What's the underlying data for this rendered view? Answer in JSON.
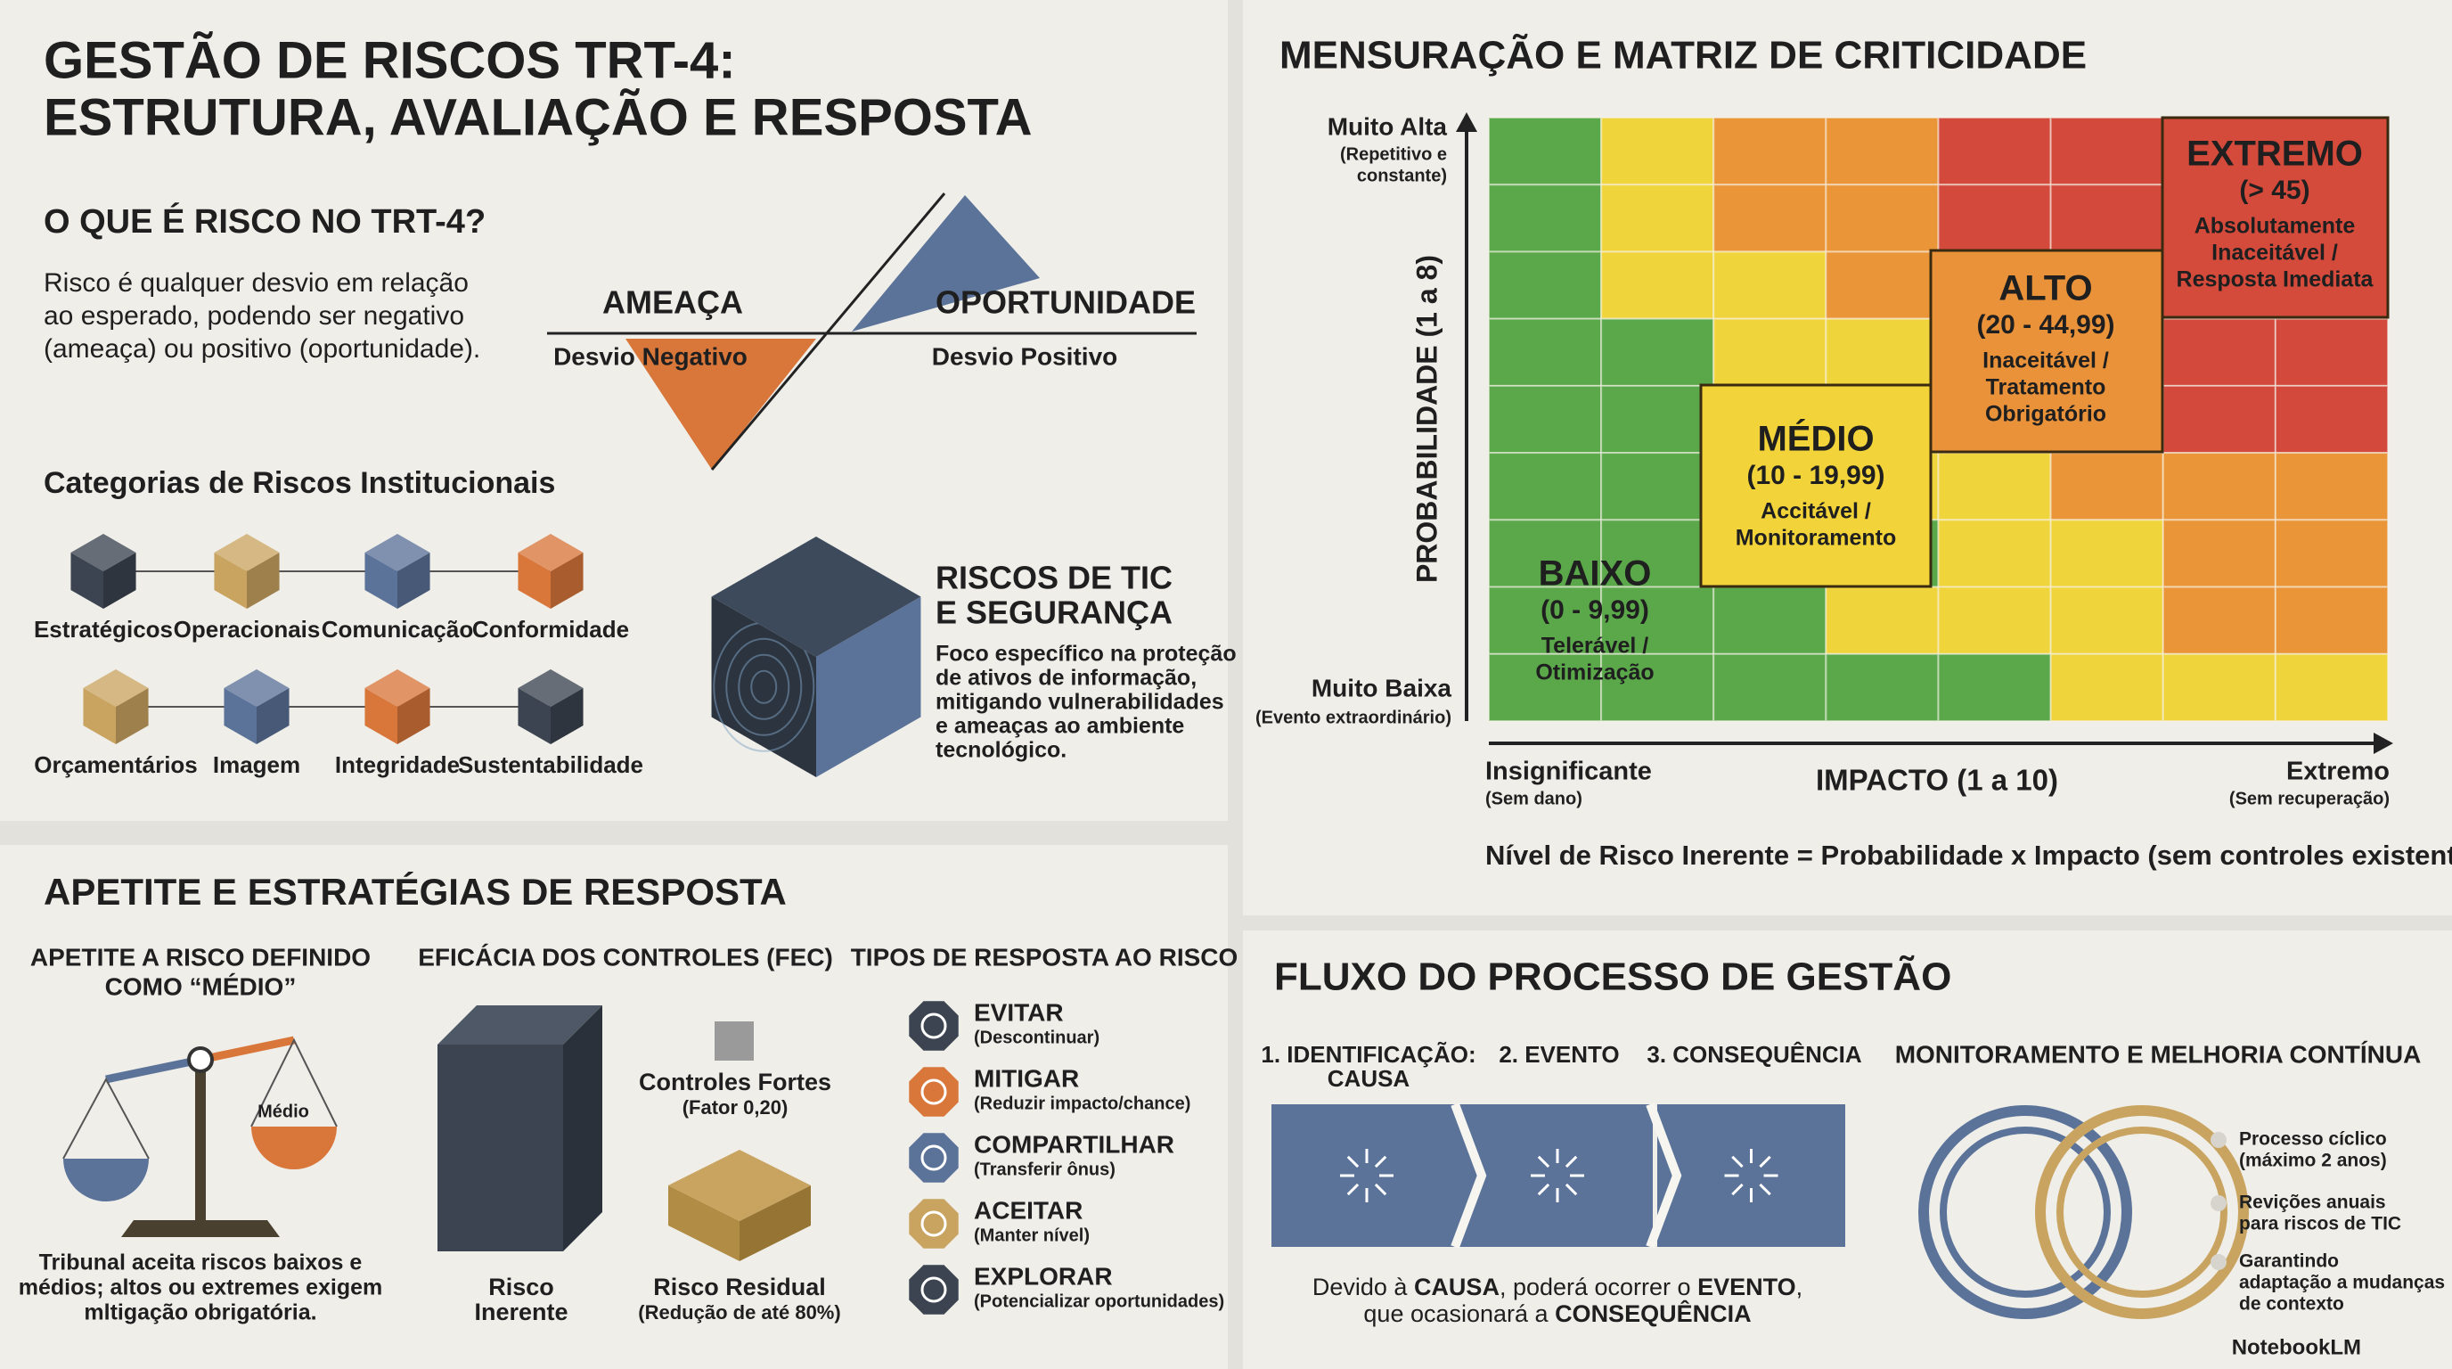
{
  "title": [
    "GESTÃO DE RISCOS TRT-4:",
    "ESTRUTURA, AVALIAÇÃO E RESPOSTA"
  ],
  "what_is_risk": {
    "heading": "O QUE É RISCO NO TRT-4?",
    "text": [
      "Risco é qualquer desvio em relação",
      "ao esperado, podendo ser negativo",
      "(ameaça) ou positivo (oportunidade)."
    ],
    "threat": {
      "label": "AMEAÇA",
      "sub": "Desvio Negativo"
    },
    "opportunity": {
      "label": "OPORTUNIDADE",
      "sub": "Desvio Positivo"
    }
  },
  "categories": {
    "heading": "Categorias de Riscos Institucionais",
    "items": [
      "Estratégicos",
      "Operacionais",
      "Comunicação",
      "Conformidade",
      "Orçamentários",
      "Imagem",
      "Integridade",
      "Sustentabilidade"
    ]
  },
  "tic": {
    "heading": [
      "RISCOS DE TIC",
      "E SEGURANÇA"
    ],
    "text": [
      "Foco específico na proteção",
      "de ativos de informação,",
      "mitigando vulnerabilidades",
      "e ameaças ao ambiente",
      "tecnológico."
    ]
  },
  "appetite": {
    "heading": "APETITE E ESTRATÉGIAS DE RESPOSTA",
    "title": [
      "APETITE A RISCO DEFINIDO",
      "COMO “MÉDIO”"
    ],
    "scale_label": "Médio",
    "note": [
      "Tribunal aceita riscos baixos e",
      "médios; altos ou extremes exigem",
      "mltigação obrigatória."
    ]
  },
  "controls": {
    "heading": "EFICÁCIA DOS CONTROLES (FEC)",
    "strong": {
      "label": "Controles Fortes",
      "sub": "(Fator 0,20)"
    },
    "inherent": [
      "Risco",
      "Inerente"
    ],
    "residual": {
      "label": "Risco Residual",
      "sub": "(Redução de até 80%)"
    }
  },
  "responses": {
    "heading": "TIPOS DE RESPOSTA AO RISCO",
    "items": [
      {
        "name": "EVITAR",
        "desc": "(Descontinuar)"
      },
      {
        "name": "MITIGAR",
        "desc": "(Reduzir impacto/chance)"
      },
      {
        "name": "COMPARTILHAR",
        "desc": "(Transferir ônus)"
      },
      {
        "name": "ACEITAR",
        "desc": "(Manter nível)"
      },
      {
        "name": "EXPLORAR",
        "desc": "(Potencializar oportunidades)"
      }
    ]
  },
  "matrix": {
    "heading": "MENSURAÇÃO E MATRIZ DE CRITICIDADE",
    "y_axis": "PROBABILIDADE (1 a 8)",
    "y_high": {
      "label": "Muito Alta",
      "sub": [
        "(Repetitivo e",
        "constante)"
      ]
    },
    "y_low": {
      "label": "Muito Baixa",
      "sub": "(Evento extraordinário)"
    },
    "x_axis": "IMPACTO (1 a 10)",
    "x_low": {
      "label": "Insignificante",
      "sub": "(Sem dano)"
    },
    "x_high": {
      "label": "Extremo",
      "sub": "(Sem recuperação)"
    },
    "levels": [
      {
        "name": "BAIXO",
        "range": "(0 - 9,99)",
        "action": [
          "Telerável /",
          "Otimização"
        ]
      },
      {
        "name": "MÉDIO",
        "range": "(10 - 19,99)",
        "action": [
          "Accitável /",
          "Monitoramento"
        ]
      },
      {
        "name": "ALTO",
        "range": "(20 - 44,99)",
        "action": [
          "Inaceitável /",
          "Tratamento",
          "Obrigatório"
        ]
      },
      {
        "name": "EXTREMO",
        "range": "(> 45)",
        "action": [
          "Absolutamente",
          "Inaceitável /",
          "Resposta Imediata"
        ]
      }
    ],
    "formula": "Nível de Risco Inerente = Probabilidade x Impacto (sem controles existentes)"
  },
  "process": {
    "heading": "FLUXO DO PROCESSO DE GESTÃO",
    "steps": [
      [
        "1. IDENTIFICAÇÃO:",
        "CAUSA"
      ],
      [
        "2. EVENTO"
      ],
      [
        "3. CONSEQUÊNCIA"
      ]
    ],
    "caption": [
      [
        "Devido à ",
        "CAUSA",
        ", poderá ocorrer o ",
        "EVENTO",
        ","
      ],
      [
        "que ocasionará a ",
        "CONSEQUÊNCIA"
      ]
    ]
  },
  "monitoring": {
    "heading": "MONITORAMENTO E MELHORIA CONTÍNUA",
    "items": [
      [
        "Processo cíclico",
        "(máximo 2 anos)"
      ],
      [
        "Revições anuais",
        "para riscos de TIC"
      ],
      [
        "Garantindo",
        "adaptação a mudanças",
        "de contexto"
      ]
    ]
  },
  "brand": "NotebookLM"
}
